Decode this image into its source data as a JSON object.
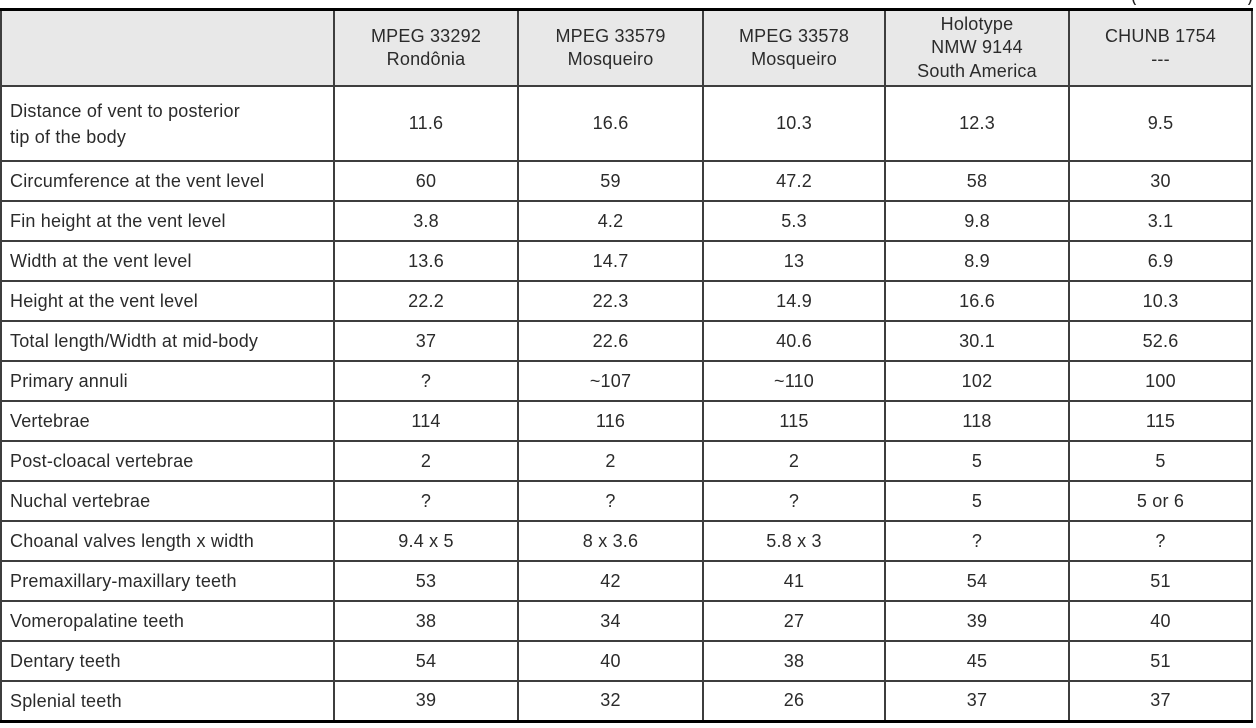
{
  "corner_note": {
    "left_glyph": "(",
    "right_glyph": ")"
  },
  "colors": {
    "header_bg": "#e8e8e8",
    "inner_border": "#3e3e3e",
    "outer_border": "#000000",
    "text": "#2b2b2b"
  },
  "table": {
    "col_headers": [
      "MPEG 33292\nRondônia",
      "MPEG 33579\nMosqueiro",
      "MPEG 33578\nMosqueiro",
      "Holotype\nNMW 9144\nSouth America",
      "CHUNB 1754\n---"
    ],
    "rows": [
      {
        "label": "Distance of vent to posterior\ntip of the body",
        "values": [
          "11.6",
          "16.6",
          "10.3",
          "12.3",
          "9.5"
        ]
      },
      {
        "label": "Circumference at the vent level",
        "values": [
          "60",
          "59",
          "47.2",
          "58",
          "30"
        ]
      },
      {
        "label": "Fin height at the vent level",
        "values": [
          "3.8",
          "4.2",
          "5.3",
          "9.8",
          "3.1"
        ]
      },
      {
        "label": "Width at the vent level",
        "values": [
          "13.6",
          "14.7",
          "13",
          "8.9",
          "6.9"
        ]
      },
      {
        "label": "Height at the vent level",
        "values": [
          "22.2",
          "22.3",
          "14.9",
          "16.6",
          "10.3"
        ]
      },
      {
        "label": "Total length/Width at mid-body",
        "values": [
          "37",
          "22.6",
          "40.6",
          "30.1",
          "52.6"
        ]
      },
      {
        "label": "Primary annuli",
        "values": [
          "?",
          "~107",
          "~110",
          "102",
          "100"
        ]
      },
      {
        "label": "Vertebrae",
        "values": [
          "114",
          "116",
          "115",
          "118",
          "115"
        ]
      },
      {
        "label": "Post-cloacal vertebrae",
        "values": [
          "2",
          "2",
          "2",
          "5",
          "5"
        ]
      },
      {
        "label": "Nuchal vertebrae",
        "values": [
          "?",
          "?",
          "?",
          "5",
          "5 or 6"
        ]
      },
      {
        "label": "Choanal valves length x width",
        "values": [
          "9.4 x 5",
          "8 x 3.6",
          "5.8 x 3",
          "?",
          "?"
        ]
      },
      {
        "label": "Premaxillary-maxillary teeth",
        "values": [
          "53",
          "42",
          "41",
          "54",
          "51"
        ]
      },
      {
        "label": "Vomeropalatine teeth",
        "values": [
          "38",
          "34",
          "27",
          "39",
          "40"
        ]
      },
      {
        "label": "Dentary teeth",
        "values": [
          "54",
          "40",
          "38",
          "45",
          "51"
        ]
      },
      {
        "label": "Splenial teeth",
        "values": [
          "39",
          "32",
          "26",
          "37",
          "37"
        ]
      }
    ]
  }
}
